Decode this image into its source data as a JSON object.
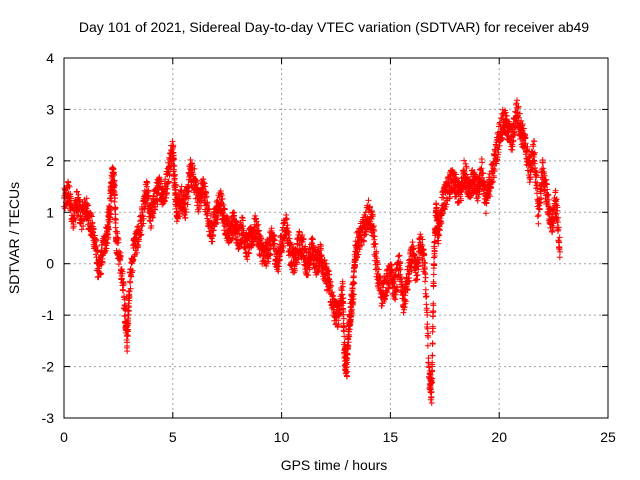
{
  "chart_data": {
    "type": "scatter",
    "title": "Day 101 of 2021, Sidereal Day-to-day VTEC variation (SDTVAR) for receiver ab49",
    "xlabel": "GPS time / hours",
    "ylabel": "SDTVAR / TECUs",
    "xlim": [
      0,
      25
    ],
    "ylim": [
      -3,
      4
    ],
    "xticks": [
      "0",
      "5",
      "10",
      "15",
      "20",
      "25"
    ],
    "yticks": [
      "-3",
      "-2",
      "-1",
      "0",
      "1",
      "2",
      "3",
      "4"
    ],
    "grid": true,
    "marker": "+",
    "series": [
      {
        "name": "SDTVAR",
        "color": "#ff0000",
        "trace": [
          [
            0.0,
            1.2
          ],
          [
            0.2,
            1.4
          ],
          [
            0.4,
            0.9
          ],
          [
            0.6,
            1.2
          ],
          [
            0.8,
            0.9
          ],
          [
            1.0,
            1.1
          ],
          [
            1.2,
            0.8
          ],
          [
            1.4,
            0.5
          ],
          [
            1.6,
            -0.2
          ],
          [
            1.8,
            0.3
          ],
          [
            2.0,
            0.6
          ],
          [
            2.1,
            1.0
          ],
          [
            2.2,
            1.6
          ],
          [
            2.3,
            1.7
          ],
          [
            2.4,
            0.5
          ],
          [
            2.6,
            0.0
          ],
          [
            2.8,
            -0.9
          ],
          [
            2.9,
            -1.5
          ],
          [
            3.0,
            -0.5
          ],
          [
            3.2,
            0.3
          ],
          [
            3.4,
            0.5
          ],
          [
            3.6,
            0.9
          ],
          [
            3.8,
            1.4
          ],
          [
            4.0,
            0.9
          ],
          [
            4.2,
            1.3
          ],
          [
            4.4,
            1.5
          ],
          [
            4.6,
            1.3
          ],
          [
            4.8,
            1.8
          ],
          [
            5.0,
            2.3
          ],
          [
            5.1,
            1.5
          ],
          [
            5.2,
            1.0
          ],
          [
            5.4,
            1.3
          ],
          [
            5.6,
            1.1
          ],
          [
            5.8,
            1.8
          ],
          [
            6.0,
            1.6
          ],
          [
            6.2,
            1.2
          ],
          [
            6.4,
            1.5
          ],
          [
            6.6,
            1.0
          ],
          [
            6.8,
            0.6
          ],
          [
            7.0,
            1.0
          ],
          [
            7.2,
            1.2
          ],
          [
            7.4,
            0.8
          ],
          [
            7.6,
            0.6
          ],
          [
            7.8,
            0.8
          ],
          [
            8.0,
            0.5
          ],
          [
            8.2,
            0.7
          ],
          [
            8.4,
            0.3
          ],
          [
            8.6,
            0.5
          ],
          [
            8.8,
            0.7
          ],
          [
            9.0,
            0.4
          ],
          [
            9.2,
            0.1
          ],
          [
            9.4,
            0.3
          ],
          [
            9.6,
            0.5
          ],
          [
            9.8,
            0.0
          ],
          [
            10.0,
            0.4
          ],
          [
            10.2,
            0.8
          ],
          [
            10.4,
            0.2
          ],
          [
            10.6,
            0.0
          ],
          [
            10.8,
            0.4
          ],
          [
            11.0,
            0.3
          ],
          [
            11.2,
            -0.1
          ],
          [
            11.4,
            0.3
          ],
          [
            11.6,
            0.0
          ],
          [
            11.8,
            0.2
          ],
          [
            12.0,
            -0.2
          ],
          [
            12.2,
            -0.4
          ],
          [
            12.4,
            -0.9
          ],
          [
            12.6,
            -1.0
          ],
          [
            12.8,
            -0.5
          ],
          [
            12.9,
            -1.8
          ],
          [
            13.0,
            -2.0
          ],
          [
            13.1,
            -1.2
          ],
          [
            13.2,
            -0.8
          ],
          [
            13.3,
            -0.5
          ],
          [
            13.4,
            0.3
          ],
          [
            13.6,
            0.5
          ],
          [
            13.8,
            0.7
          ],
          [
            14.0,
            1.0
          ],
          [
            14.2,
            0.7
          ],
          [
            14.4,
            -0.2
          ],
          [
            14.6,
            -0.6
          ],
          [
            14.8,
            -0.4
          ],
          [
            15.0,
            -0.2
          ],
          [
            15.2,
            -0.5
          ],
          [
            15.4,
            0.0
          ],
          [
            15.6,
            -0.8
          ],
          [
            15.8,
            -0.3
          ],
          [
            16.0,
            0.2
          ],
          [
            16.2,
            -0.2
          ],
          [
            16.4,
            0.5
          ],
          [
            16.6,
            -0.2
          ],
          [
            16.8,
            -2.3
          ],
          [
            16.9,
            -2.5
          ],
          [
            17.0,
            0.0
          ],
          [
            17.1,
            1.0
          ],
          [
            17.2,
            0.6
          ],
          [
            17.4,
            1.2
          ],
          [
            17.6,
            1.4
          ],
          [
            17.8,
            1.6
          ],
          [
            18.0,
            1.5
          ],
          [
            18.2,
            1.3
          ],
          [
            18.4,
            1.8
          ],
          [
            18.6,
            1.5
          ],
          [
            18.8,
            1.6
          ],
          [
            19.0,
            1.4
          ],
          [
            19.2,
            1.8
          ],
          [
            19.4,
            1.2
          ],
          [
            19.6,
            1.6
          ],
          [
            19.8,
            2.0
          ],
          [
            20.0,
            2.5
          ],
          [
            20.2,
            2.8
          ],
          [
            20.4,
            2.6
          ],
          [
            20.6,
            2.4
          ],
          [
            20.8,
            3.0
          ],
          [
            21.0,
            2.6
          ],
          [
            21.2,
            2.3
          ],
          [
            21.4,
            1.8
          ],
          [
            21.6,
            2.2
          ],
          [
            21.8,
            1.0
          ],
          [
            22.0,
            1.8
          ],
          [
            22.2,
            1.3
          ],
          [
            22.4,
            0.7
          ],
          [
            22.6,
            1.2
          ],
          [
            22.8,
            0.3
          ]
        ]
      }
    ]
  }
}
